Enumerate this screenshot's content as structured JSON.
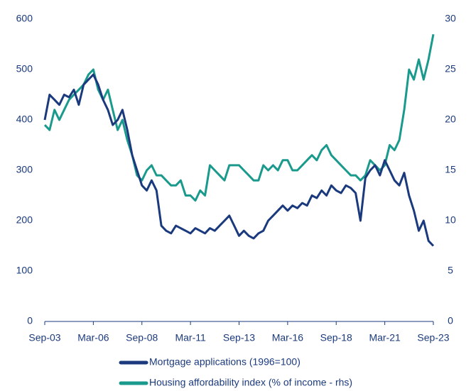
{
  "chart_data": {
    "type": "line",
    "categories": [
      "Sep-03",
      null,
      null,
      null,
      null,
      null,
      null,
      null,
      null,
      null,
      "Mar-06",
      null,
      null,
      null,
      null,
      null,
      null,
      null,
      null,
      null,
      "Sep-08",
      null,
      null,
      null,
      null,
      null,
      null,
      null,
      null,
      null,
      "Mar-11",
      null,
      null,
      null,
      null,
      null,
      null,
      null,
      null,
      null,
      "Sep-13",
      null,
      null,
      null,
      null,
      null,
      null,
      null,
      null,
      null,
      "Mar-16",
      null,
      null,
      null,
      null,
      null,
      null,
      null,
      null,
      null,
      "Sep-18",
      null,
      null,
      null,
      null,
      null,
      null,
      null,
      null,
      null,
      "Mar-21",
      null,
      null,
      null,
      null,
      null,
      null,
      null,
      null,
      null,
      "Sep-23"
    ],
    "series": [
      {
        "name": "Mortgage applications (1996=100)",
        "color": "#1b3a7d",
        "values": [
          400,
          450,
          440,
          430,
          450,
          445,
          460,
          430,
          470,
          480,
          490,
          470,
          440,
          420,
          390,
          400,
          420,
          380,
          330,
          300,
          270,
          260,
          280,
          260,
          190,
          180,
          175,
          190,
          185,
          180,
          175,
          185,
          180,
          175,
          185,
          180,
          190,
          200,
          210,
          190,
          170,
          180,
          170,
          165,
          175,
          180,
          200,
          210,
          220,
          230,
          220,
          230,
          225,
          235,
          230,
          250,
          245,
          260,
          250,
          270,
          260,
          255,
          270,
          265,
          255,
          200,
          285,
          300,
          310,
          290,
          320,
          300,
          280,
          270,
          295,
          250,
          220,
          180,
          200,
          160,
          150
        ]
      },
      {
        "name": "Housing affordability index (% of income - rhs)",
        "color": "#1a9a8c",
        "axis": "y2",
        "values": [
          19.5,
          19,
          21,
          20,
          21,
          22,
          22.5,
          23,
          23.5,
          24.5,
          25,
          23,
          22,
          23,
          21,
          19,
          20,
          18,
          16.5,
          14.5,
          14,
          15,
          15.5,
          14.5,
          14.5,
          14,
          13.5,
          13.5,
          14,
          12.5,
          12.5,
          12,
          13,
          12.5,
          15.5,
          15,
          14.5,
          14,
          15.5,
          15.5,
          15.5,
          15,
          14.5,
          14,
          14,
          15.5,
          15,
          15.5,
          15,
          16,
          16,
          15,
          15,
          15.5,
          16,
          16.5,
          16,
          17,
          17.5,
          16.5,
          16,
          15.5,
          15,
          14.5,
          14.5,
          14,
          14.5,
          16,
          15.5,
          15,
          15.5,
          17.5,
          17,
          18,
          21,
          25,
          24,
          26,
          24,
          26,
          28.5
        ]
      }
    ],
    "ylim": [
      0,
      600
    ],
    "yticks": [
      0,
      100,
      200,
      300,
      400,
      500,
      600
    ],
    "y2lim": [
      0,
      30
    ],
    "y2ticks": [
      0,
      5,
      10,
      15,
      20,
      25,
      30
    ],
    "grid": false,
    "legend": "bottom"
  }
}
